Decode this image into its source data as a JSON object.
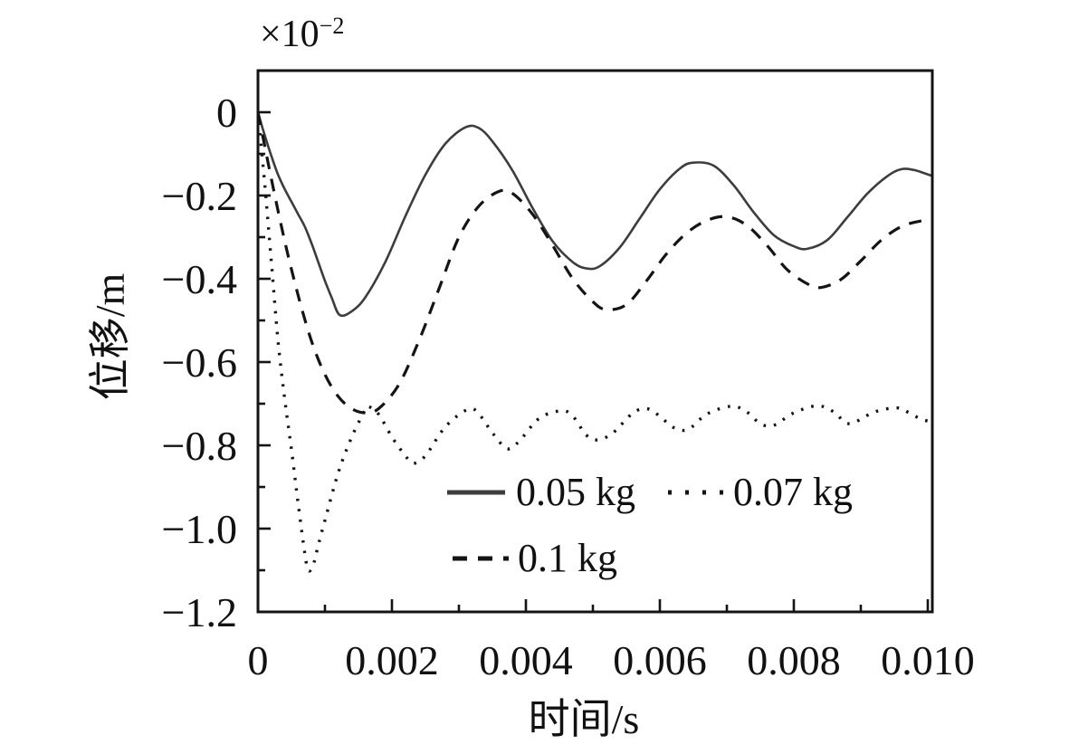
{
  "figure": {
    "offset_label_base": "×10",
    "offset_label_exp": "−2",
    "background": "#ffffff",
    "axis_color": "#141414",
    "text_color": "#111111"
  },
  "chart_data": {
    "type": "line",
    "title": "",
    "xlabel": "时间/s",
    "ylabel": "位移/m",
    "y_offset_text": "×10⁻²",
    "xlim": [
      0,
      0.01
    ],
    "ylim": [
      -1.2,
      0.1
    ],
    "grid": false,
    "legend_position": "inside lower center, no frame, two rows",
    "x_axis": {
      "title": "时间/s",
      "major_ticks": [
        0,
        0.002,
        0.004,
        0.006,
        0.008,
        0.01
      ],
      "tick_labels": [
        "0",
        "0.002",
        "0.004",
        "0.006",
        "0.008",
        "0.010"
      ],
      "minor_ticks": [
        0.001,
        0.003,
        0.005,
        0.007,
        0.009
      ]
    },
    "y_axis": {
      "title": "位移/m",
      "offset": "×10⁻²",
      "major_ticks": [
        0,
        -0.2,
        -0.4,
        -0.6,
        -0.8,
        -1.0,
        -1.2
      ],
      "tick_labels": [
        "0",
        "−0.2",
        "−0.4",
        "−0.6",
        "−0.8",
        "−1.0",
        "−1.2"
      ],
      "minor_ticks": [
        -0.1,
        -0.3,
        -0.5,
        -0.7,
        -0.9,
        -1.1
      ]
    },
    "series": [
      {
        "name": "0.05 kg",
        "style": "solid",
        "color": "#3d3d3d",
        "points": [
          [
            0,
            0
          ],
          [
            0.0001,
            -0.055
          ],
          [
            0.0002,
            -0.105
          ],
          [
            0.0003,
            -0.15
          ],
          [
            0.0004,
            -0.185
          ],
          [
            0.0005,
            -0.215
          ],
          [
            0.0006,
            -0.245
          ],
          [
            0.0007,
            -0.275
          ],
          [
            0.0008,
            -0.315
          ],
          [
            0.0009,
            -0.36
          ],
          [
            0.001,
            -0.405
          ],
          [
            0.0011,
            -0.445
          ],
          [
            0.00122,
            -0.487
          ],
          [
            0.0014,
            -0.478
          ],
          [
            0.0016,
            -0.445
          ],
          [
            0.0019,
            -0.36
          ],
          [
            0.0022,
            -0.25
          ],
          [
            0.0025,
            -0.15
          ],
          [
            0.0028,
            -0.075
          ],
          [
            0.0031,
            -0.036
          ],
          [
            0.0033,
            -0.038
          ],
          [
            0.0035,
            -0.07
          ],
          [
            0.0038,
            -0.14
          ],
          [
            0.0041,
            -0.23
          ],
          [
            0.0044,
            -0.31
          ],
          [
            0.0047,
            -0.36
          ],
          [
            0.0049,
            -0.375
          ],
          [
            0.0051,
            -0.37
          ],
          [
            0.0054,
            -0.325
          ],
          [
            0.0057,
            -0.255
          ],
          [
            0.006,
            -0.185
          ],
          [
            0.0063,
            -0.135
          ],
          [
            0.0065,
            -0.121
          ],
          [
            0.0068,
            -0.128
          ],
          [
            0.0071,
            -0.175
          ],
          [
            0.0074,
            -0.24
          ],
          [
            0.0077,
            -0.295
          ],
          [
            0.008,
            -0.322
          ],
          [
            0.0082,
            -0.328
          ],
          [
            0.0085,
            -0.307
          ],
          [
            0.0088,
            -0.252
          ],
          [
            0.0091,
            -0.195
          ],
          [
            0.0094,
            -0.153
          ],
          [
            0.0096,
            -0.137
          ],
          [
            0.0098,
            -0.139
          ],
          [
            0.0101,
            -0.155
          ]
        ]
      },
      {
        "name": "0.07 kg",
        "style": "dotted",
        "color": "#141414",
        "points": [
          [
            0,
            0
          ],
          [
            0.0001,
            -0.17
          ],
          [
            0.0002,
            -0.36
          ],
          [
            0.0003,
            -0.55
          ],
          [
            0.0004,
            -0.69
          ],
          [
            0.0005,
            -0.81
          ],
          [
            0.0006,
            -0.94
          ],
          [
            0.0007,
            -1.06
          ],
          [
            0.00075,
            -1.1
          ],
          [
            0.00082,
            -1.09
          ],
          [
            0.0009,
            -1.04
          ],
          [
            0.001,
            -0.98
          ],
          [
            0.0012,
            -0.865
          ],
          [
            0.0014,
            -0.78
          ],
          [
            0.0016,
            -0.715
          ],
          [
            0.00165,
            -0.707
          ],
          [
            0.0018,
            -0.725
          ],
          [
            0.002,
            -0.78
          ],
          [
            0.0022,
            -0.825
          ],
          [
            0.00232,
            -0.843
          ],
          [
            0.0025,
            -0.825
          ],
          [
            0.0028,
            -0.755
          ],
          [
            0.00314,
            -0.713
          ],
          [
            0.0033,
            -0.725
          ],
          [
            0.0035,
            -0.77
          ],
          [
            0.00372,
            -0.808
          ],
          [
            0.0039,
            -0.79
          ],
          [
            0.0042,
            -0.735
          ],
          [
            0.00453,
            -0.717
          ],
          [
            0.0047,
            -0.73
          ],
          [
            0.0049,
            -0.775
          ],
          [
            0.00507,
            -0.787
          ],
          [
            0.0053,
            -0.77
          ],
          [
            0.0056,
            -0.722
          ],
          [
            0.00581,
            -0.712
          ],
          [
            0.006,
            -0.73
          ],
          [
            0.0062,
            -0.757
          ],
          [
            0.00642,
            -0.762
          ],
          [
            0.0067,
            -0.725
          ],
          [
            0.00707,
            -0.706
          ],
          [
            0.0073,
            -0.72
          ],
          [
            0.0075,
            -0.748
          ],
          [
            0.0077,
            -0.752
          ],
          [
            0.008,
            -0.722
          ],
          [
            0.00835,
            -0.705
          ],
          [
            0.0086,
            -0.72
          ],
          [
            0.00883,
            -0.748
          ],
          [
            0.0092,
            -0.72
          ],
          [
            0.00953,
            -0.71
          ],
          [
            0.0097,
            -0.72
          ],
          [
            0.0099,
            -0.737
          ],
          [
            0.0101,
            -0.745
          ]
        ]
      },
      {
        "name": "0.1 kg",
        "style": "dashed",
        "color": "#141414",
        "points": [
          [
            0,
            0
          ],
          [
            0.0002,
            -0.16
          ],
          [
            0.0004,
            -0.31
          ],
          [
            0.0006,
            -0.44
          ],
          [
            0.0008,
            -0.55
          ],
          [
            0.001,
            -0.63
          ],
          [
            0.0012,
            -0.683
          ],
          [
            0.0014,
            -0.712
          ],
          [
            0.0016,
            -0.722
          ],
          [
            0.0018,
            -0.712
          ],
          [
            0.0021,
            -0.655
          ],
          [
            0.0024,
            -0.55
          ],
          [
            0.0027,
            -0.425
          ],
          [
            0.003,
            -0.3
          ],
          [
            0.0033,
            -0.225
          ],
          [
            0.0036,
            -0.19
          ],
          [
            0.0038,
            -0.195
          ],
          [
            0.0041,
            -0.245
          ],
          [
            0.0044,
            -0.32
          ],
          [
            0.0047,
            -0.4
          ],
          [
            0.005,
            -0.455
          ],
          [
            0.0052,
            -0.474
          ],
          [
            0.0055,
            -0.462
          ],
          [
            0.0058,
            -0.405
          ],
          [
            0.0061,
            -0.34
          ],
          [
            0.0064,
            -0.29
          ],
          [
            0.0067,
            -0.26
          ],
          [
            0.007,
            -0.251
          ],
          [
            0.0073,
            -0.272
          ],
          [
            0.0076,
            -0.32
          ],
          [
            0.0079,
            -0.378
          ],
          [
            0.0082,
            -0.412
          ],
          [
            0.0084,
            -0.421
          ],
          [
            0.0087,
            -0.402
          ],
          [
            0.009,
            -0.357
          ],
          [
            0.0093,
            -0.308
          ],
          [
            0.0096,
            -0.275
          ],
          [
            0.0099,
            -0.261
          ],
          [
            0.0101,
            -0.262
          ]
        ]
      }
    ]
  },
  "legend": {
    "row1": [
      "0.05 kg",
      "0.07 kg"
    ],
    "row2": [
      "0.1 kg"
    ]
  }
}
